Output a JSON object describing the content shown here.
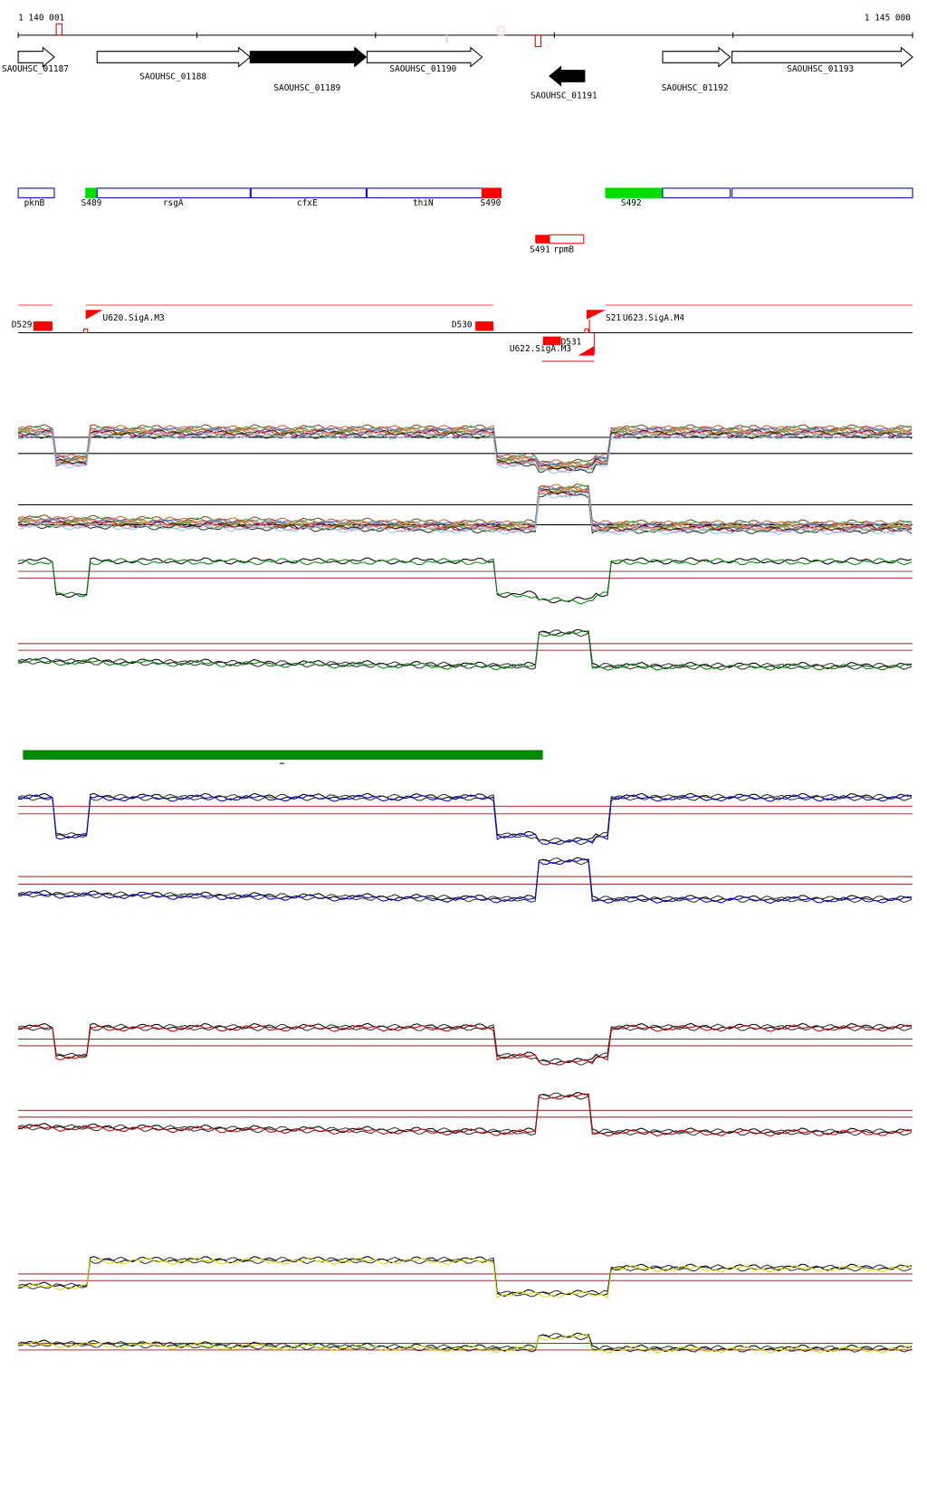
{
  "ruler": {
    "start": "1 140 001",
    "end": "1 145 000"
  },
  "genes": [
    "SAOUHSC_01187",
    "SAOUHSC_01188",
    "SAOUHSC_01189",
    "SAOUHSC_01190",
    "SAOUHSC_01191",
    "SAOUHSC_01192",
    "SAOUHSC_01193"
  ],
  "features": [
    "pknB",
    "S489",
    "rsgA",
    "cfxE",
    "thiN",
    "S490",
    "S492",
    "S491",
    "rpmB"
  ],
  "sites": [
    "D529",
    "U620.SigA.M3",
    "D530",
    "S21",
    "U623.SigA.M4",
    "D531",
    "U622.SigA.M3"
  ]
}
